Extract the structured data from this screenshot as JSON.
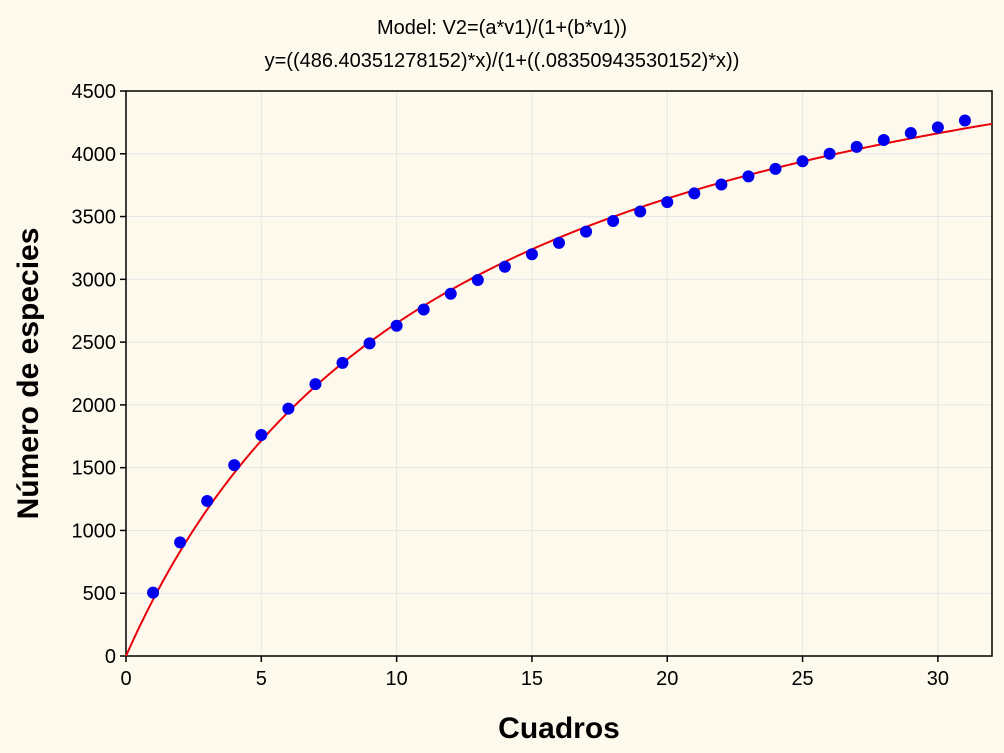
{
  "chart_data": {
    "type": "scatter",
    "title": "Model: V2=(a*v1)/(1+(b*v1))",
    "subtitle": "y=((486.40351278152)*x)/(1+((.08350943530152)*x))",
    "xlabel": "Cuadros",
    "ylabel": "Número de especies",
    "xlim": [
      0,
      32
    ],
    "ylim": [
      0,
      4500
    ],
    "xticks": [
      0,
      5,
      10,
      15,
      20,
      25,
      30
    ],
    "yticks": [
      0,
      500,
      1000,
      1500,
      2000,
      2500,
      3000,
      3500,
      4000,
      4500
    ],
    "grid": true,
    "series": [
      {
        "kind": "points",
        "color": "#0000ee",
        "x": [
          1,
          2,
          3,
          4,
          5,
          6,
          7,
          8,
          9,
          10,
          11,
          12,
          13,
          14,
          15,
          16,
          17,
          18,
          19,
          20,
          21,
          22,
          23,
          24,
          25,
          26,
          27,
          28,
          29,
          30,
          31
        ],
        "y": [
          505,
          905,
          1235,
          1520,
          1760,
          1970,
          2165,
          2335,
          2490,
          2630,
          2760,
          2885,
          2995,
          3100,
          3200,
          3290,
          3380,
          3465,
          3540,
          3615,
          3685,
          3755,
          3820,
          3880,
          3940,
          4000,
          4055,
          4110,
          4165,
          4210,
          4265
        ]
      },
      {
        "kind": "fit-curve",
        "color": "#e8000b",
        "a": 486.40351278152,
        "b": 0.08350943530152
      }
    ]
  }
}
